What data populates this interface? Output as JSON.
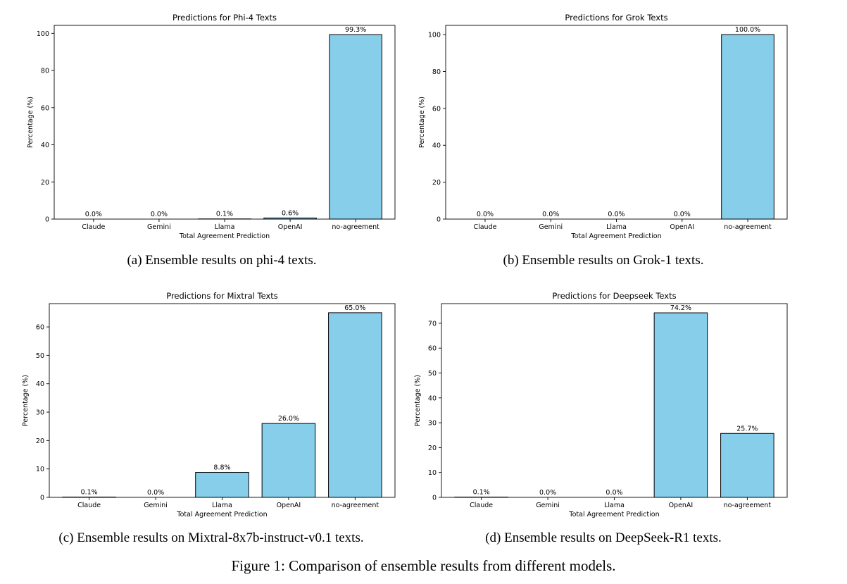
{
  "chart_data": [
    {
      "type": "bar",
      "title": "Predictions for Phi-4 Texts",
      "xlabel": "Total Agreement Prediction",
      "ylabel": "Percentage (%)",
      "categories": [
        "Claude",
        "Gemini",
        "Llama",
        "OpenAI",
        "no-agreement"
      ],
      "values": [
        0.0,
        0.0,
        0.1,
        0.6,
        99.3
      ],
      "value_labels": [
        "0.0%",
        "0.0%",
        "0.1%",
        "0.6%",
        "99.3%"
      ],
      "yticks": [
        0,
        20,
        40,
        60,
        80,
        100
      ],
      "ylim": [
        0,
        104.3
      ],
      "bar_color": "#87CEEB",
      "caption": "(a) Ensemble results on phi-4 texts."
    },
    {
      "type": "bar",
      "title": "Predictions for Grok Texts",
      "xlabel": "Total Agreement Prediction",
      "ylabel": "Percentage (%)",
      "categories": [
        "Claude",
        "Gemini",
        "Llama",
        "OpenAI",
        "no-agreement"
      ],
      "values": [
        0.0,
        0.0,
        0.0,
        0.0,
        100.0
      ],
      "value_labels": [
        "0.0%",
        "0.0%",
        "0.0%",
        "0.0%",
        "100.0%"
      ],
      "yticks": [
        0,
        20,
        40,
        60,
        80,
        100
      ],
      "ylim": [
        0,
        105
      ],
      "bar_color": "#87CEEB",
      "caption": "(b) Ensemble results on Grok-1 texts."
    },
    {
      "type": "bar",
      "title": "Predictions for Mixtral Texts",
      "xlabel": "Total Agreement Prediction",
      "ylabel": "Percentage (%)",
      "categories": [
        "Claude",
        "Gemini",
        "Llama",
        "OpenAI",
        "no-agreement"
      ],
      "values": [
        0.1,
        0.0,
        8.8,
        26.0,
        65.0
      ],
      "value_labels": [
        "0.1%",
        "0.0%",
        "8.8%",
        "26.0%",
        "65.0%"
      ],
      "yticks": [
        0,
        10,
        20,
        30,
        40,
        50,
        60
      ],
      "ylim": [
        0,
        68.2
      ],
      "bar_color": "#87CEEB",
      "caption": "(c) Ensemble results on Mixtral-8x7b-instruct-v0.1 texts."
    },
    {
      "type": "bar",
      "title": "Predictions for Deepseek Texts",
      "xlabel": "Total Agreement Prediction",
      "ylabel": "Percentage (%)",
      "categories": [
        "Claude",
        "Gemini",
        "Llama",
        "OpenAI",
        "no-agreement"
      ],
      "values": [
        0.1,
        0.0,
        0.0,
        74.2,
        25.7
      ],
      "value_labels": [
        "0.1%",
        "0.0%",
        "0.0%",
        "74.2%",
        "25.7%"
      ],
      "yticks": [
        0,
        10,
        20,
        30,
        40,
        50,
        60,
        70
      ],
      "ylim": [
        0,
        77.9
      ],
      "bar_color": "#87CEEB",
      "caption": "(d) Ensemble results on DeepSeek-R1 texts."
    }
  ],
  "figure_caption": "Figure 1: Comparison of ensemble results from different models."
}
